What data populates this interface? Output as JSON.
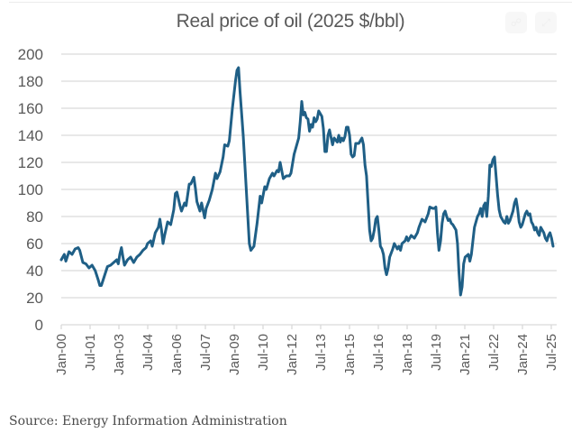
{
  "chart_data": {
    "type": "line",
    "title": "Real price of oil (2025 $/bbl)",
    "xlabel": "",
    "ylabel": "",
    "ylim": [
      0,
      200
    ],
    "yticks": [
      0,
      20,
      40,
      60,
      80,
      100,
      120,
      140,
      160,
      180,
      200
    ],
    "grid": true,
    "legend": "none",
    "xtick_labels": [
      "Jan-00",
      "Jul-01",
      "Jan-03",
      "Jul-04",
      "Jan-06",
      "Jul-07",
      "Jan-09",
      "Jul-10",
      "Jan-12",
      "Jul-13",
      "Jan-15",
      "Jul-16",
      "Jan-18",
      "Jul-19",
      "Jan-21",
      "Jul-22",
      "Jan-24",
      "Jul-25"
    ],
    "x_unit": "months since Jan-2000",
    "xlim": [
      0,
      306
    ],
    "series": [
      {
        "name": "Real price of oil",
        "color": "#1f5f86",
        "points": [
          [
            0,
            48
          ],
          [
            2,
            52
          ],
          [
            3,
            47
          ],
          [
            5,
            54
          ],
          [
            7,
            52
          ],
          [
            9,
            56
          ],
          [
            11,
            57
          ],
          [
            12,
            55
          ],
          [
            14,
            46
          ],
          [
            16,
            45
          ],
          [
            18,
            42
          ],
          [
            20,
            44
          ],
          [
            22,
            40
          ],
          [
            24,
            33
          ],
          [
            25,
            29
          ],
          [
            26,
            29
          ],
          [
            28,
            36
          ],
          [
            30,
            43
          ],
          [
            32,
            44
          ],
          [
            34,
            46
          ],
          [
            36,
            48
          ],
          [
            37,
            45
          ],
          [
            38,
            52
          ],
          [
            39,
            57
          ],
          [
            40,
            50
          ],
          [
            41,
            44
          ],
          [
            43,
            48
          ],
          [
            45,
            50
          ],
          [
            47,
            46
          ],
          [
            49,
            50
          ],
          [
            51,
            52
          ],
          [
            53,
            55
          ],
          [
            55,
            57
          ],
          [
            56,
            60
          ],
          [
            58,
            62
          ],
          [
            59,
            58
          ],
          [
            61,
            68
          ],
          [
            63,
            72
          ],
          [
            64,
            78
          ],
          [
            65,
            70
          ],
          [
            66,
            60
          ],
          [
            67,
            66
          ],
          [
            69,
            76
          ],
          [
            71,
            74
          ],
          [
            73,
            85
          ],
          [
            74,
            97
          ],
          [
            75,
            98
          ],
          [
            77,
            88
          ],
          [
            78,
            84
          ],
          [
            80,
            90
          ],
          [
            81,
            88
          ],
          [
            83,
            104
          ],
          [
            84,
            104
          ],
          [
            86,
            109
          ],
          [
            87,
            101
          ],
          [
            88,
            91
          ],
          [
            90,
            84
          ],
          [
            91,
            90
          ],
          [
            93,
            79
          ],
          [
            94,
            86
          ],
          [
            96,
            92
          ],
          [
            98,
            100
          ],
          [
            100,
            112
          ],
          [
            101,
            108
          ],
          [
            103,
            113
          ],
          [
            105,
            124
          ],
          [
            106,
            133
          ],
          [
            108,
            132
          ],
          [
            109,
            136
          ],
          [
            111,
            160
          ],
          [
            113,
            180
          ],
          [
            114,
            188
          ],
          [
            115,
            190
          ],
          [
            116,
            172
          ],
          [
            118,
            140
          ],
          [
            120,
            100
          ],
          [
            122,
            60
          ],
          [
            123,
            55
          ],
          [
            125,
            58
          ],
          [
            127,
            75
          ],
          [
            129,
            95
          ],
          [
            130,
            90
          ],
          [
            132,
            102
          ],
          [
            133,
            100
          ],
          [
            135,
            108
          ],
          [
            137,
            112
          ],
          [
            138,
            110
          ],
          [
            140,
            114
          ],
          [
            141,
            113
          ],
          [
            142,
            120
          ],
          [
            144,
            108
          ],
          [
            146,
            110
          ],
          [
            148,
            110
          ],
          [
            149,
            112
          ],
          [
            151,
            126
          ],
          [
            152,
            130
          ],
          [
            154,
            138
          ],
          [
            155,
            150
          ],
          [
            156,
            165
          ],
          [
            157,
            155
          ],
          [
            158,
            157
          ],
          [
            159,
            153
          ],
          [
            160,
            152
          ],
          [
            161,
            143
          ],
          [
            162,
            148
          ],
          [
            163,
            146
          ],
          [
            164,
            153
          ],
          [
            165,
            150
          ],
          [
            166,
            152
          ],
          [
            167,
            158
          ],
          [
            169,
            154
          ],
          [
            170,
            145
          ],
          [
            171,
            128
          ],
          [
            172,
            128
          ],
          [
            173,
            140
          ],
          [
            174,
            144
          ],
          [
            176,
            133
          ],
          [
            177,
            138
          ],
          [
            179,
            135
          ],
          [
            180,
            140
          ],
          [
            181,
            135
          ],
          [
            182,
            138
          ],
          [
            183,
            136
          ],
          [
            184,
            139
          ],
          [
            185,
            146
          ],
          [
            186,
            146
          ],
          [
            187,
            140
          ],
          [
            188,
            126
          ],
          [
            189,
            124
          ],
          [
            190,
            125
          ],
          [
            191,
            134
          ],
          [
            193,
            134
          ],
          [
            195,
            138
          ],
          [
            196,
            133
          ],
          [
            197,
            118
          ],
          [
            198,
            110
          ],
          [
            199,
            90
          ],
          [
            200,
            70
          ],
          [
            201,
            62
          ],
          [
            202,
            64
          ],
          [
            203,
            70
          ],
          [
            204,
            78
          ],
          [
            205,
            80
          ],
          [
            206,
            70
          ],
          [
            207,
            58
          ],
          [
            208,
            56
          ],
          [
            209,
            52
          ],
          [
            210,
            42
          ],
          [
            211,
            37
          ],
          [
            212,
            42
          ],
          [
            213,
            50
          ],
          [
            215,
            56
          ],
          [
            216,
            60
          ],
          [
            218,
            56
          ],
          [
            219,
            58
          ],
          [
            220,
            55
          ],
          [
            221,
            60
          ],
          [
            223,
            62
          ],
          [
            224,
            65
          ],
          [
            225,
            62
          ],
          [
            226,
            64
          ],
          [
            227,
            66
          ],
          [
            229,
            64
          ],
          [
            231,
            68
          ],
          [
            232,
            72
          ],
          [
            233,
            75
          ],
          [
            234,
            78
          ],
          [
            236,
            76
          ],
          [
            238,
            82
          ],
          [
            239,
            87
          ],
          [
            241,
            86
          ],
          [
            242,
            86
          ],
          [
            243,
            87
          ],
          [
            244,
            68
          ],
          [
            245,
            55
          ],
          [
            246,
            62
          ],
          [
            247,
            75
          ],
          [
            248,
            82
          ],
          [
            249,
            84
          ],
          [
            250,
            80
          ],
          [
            251,
            77
          ],
          [
            252,
            78
          ],
          [
            253,
            75
          ],
          [
            254,
            74
          ],
          [
            256,
            70
          ],
          [
            257,
            60
          ],
          [
            258,
            38
          ],
          [
            259,
            22
          ],
          [
            260,
            28
          ],
          [
            261,
            45
          ],
          [
            262,
            50
          ],
          [
            264,
            52
          ],
          [
            265,
            47
          ],
          [
            266,
            52
          ],
          [
            267,
            62
          ],
          [
            268,
            72
          ],
          [
            269,
            76
          ],
          [
            270,
            80
          ],
          [
            271,
            82
          ],
          [
            272,
            86
          ],
          [
            273,
            80
          ],
          [
            274,
            88
          ],
          [
            275,
            90
          ],
          [
            276,
            80
          ],
          [
            277,
            95
          ],
          [
            278,
            118
          ],
          [
            279,
            117
          ],
          [
            280,
            122
          ],
          [
            281,
            124
          ],
          [
            282,
            110
          ],
          [
            283,
            96
          ],
          [
            284,
            85
          ],
          [
            285,
            80
          ],
          [
            286,
            78
          ],
          [
            287,
            76
          ],
          [
            288,
            75
          ],
          [
            289,
            80
          ],
          [
            290,
            75
          ],
          [
            291,
            77
          ],
          [
            293,
            84
          ],
          [
            294,
            90
          ],
          [
            295,
            93
          ],
          [
            296,
            86
          ],
          [
            297,
            76
          ],
          [
            298,
            72
          ],
          [
            299,
            74
          ],
          [
            300,
            78
          ],
          [
            301,
            82
          ],
          [
            302,
            84
          ],
          [
            303,
            81
          ],
          [
            304,
            82
          ],
          [
            305,
            76
          ],
          [
            306,
            74
          ],
          [
            307,
            70
          ],
          [
            308,
            72
          ],
          [
            309,
            68
          ],
          [
            310,
            66
          ],
          [
            311,
            72
          ],
          [
            312,
            70
          ],
          [
            313,
            68
          ],
          [
            314,
            64
          ],
          [
            315,
            62
          ],
          [
            316,
            66
          ],
          [
            317,
            68
          ],
          [
            318,
            64
          ],
          [
            319,
            58
          ]
        ]
      }
    ]
  },
  "header": {
    "share_icon": "share-icon",
    "expand_icon": "expand-icon"
  },
  "footer": {
    "source": "Source: Energy Information Administration"
  }
}
